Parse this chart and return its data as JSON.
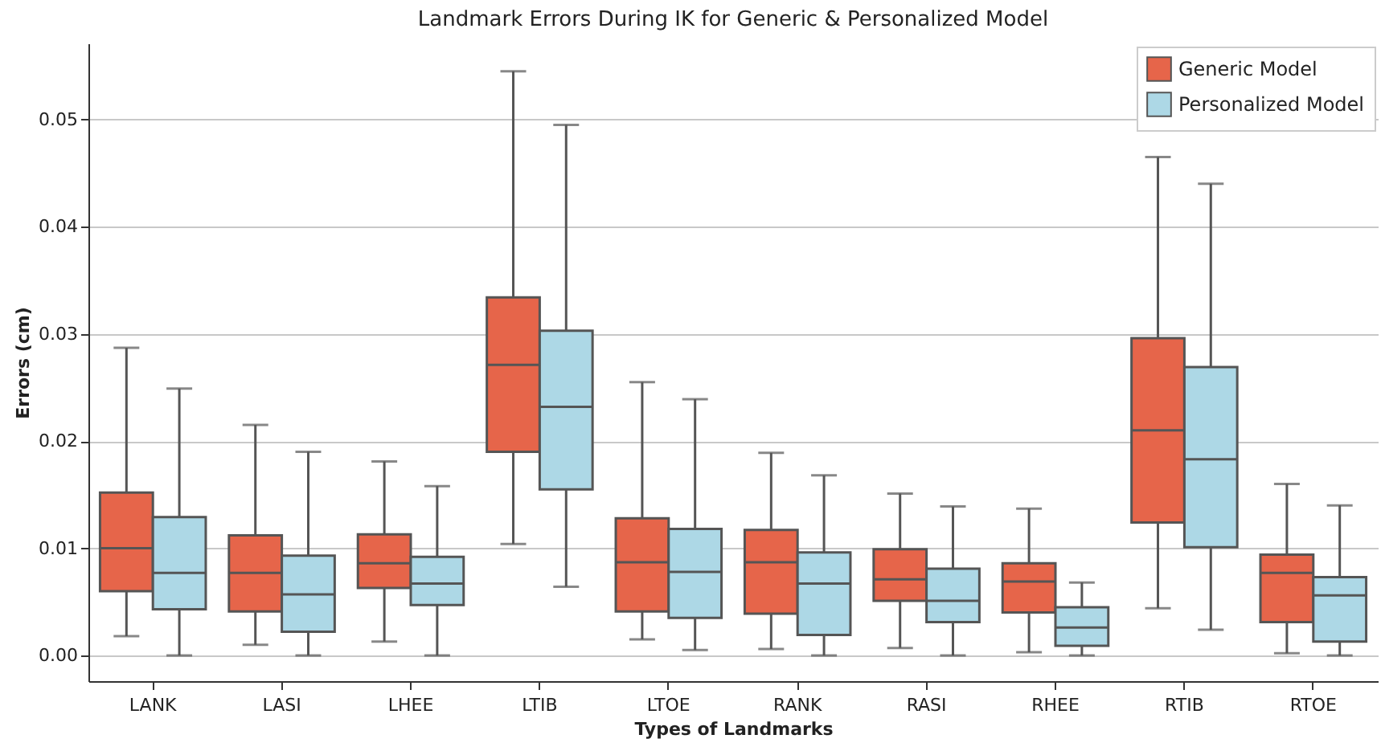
{
  "chart_data": {
    "type": "box",
    "title": "Landmark Errors During IK for Generic & Personalized Model",
    "xlabel": "Types of Landmarks",
    "ylabel": "Errors (cm)",
    "categories": [
      "LANK",
      "LASI",
      "LHEE",
      "LTIB",
      "LTOE",
      "RANK",
      "RASI",
      "RHEE",
      "RTIB",
      "RTOE"
    ],
    "ylim": [
      -0.0024,
      0.0571
    ],
    "yticks": [
      {
        "value": 0,
        "label": "0.00"
      },
      {
        "value": 0.01,
        "label": "0.01"
      },
      {
        "value": 0.02,
        "label": "0.02"
      },
      {
        "value": 0.03,
        "label": "0.03"
      },
      {
        "value": 0.04,
        "label": "0.04"
      },
      {
        "value": 0.05,
        "label": "0.05"
      }
    ],
    "grid": "y",
    "legend": "top right",
    "series": [
      {
        "name": "Generic Model",
        "color": "#e6654a",
        "boxes": [
          {
            "low": 0.0018,
            "q1": 0.006,
            "median": 0.01,
            "q3": 0.0152,
            "high": 0.0287
          },
          {
            "low": 0.001,
            "q1": 0.0041,
            "median": 0.0077,
            "q3": 0.0112,
            "high": 0.0215
          },
          {
            "low": 0.0013,
            "q1": 0.0063,
            "median": 0.0086,
            "q3": 0.0113,
            "high": 0.0181
          },
          {
            "low": 0.0104,
            "q1": 0.019,
            "median": 0.0271,
            "q3": 0.0334,
            "high": 0.0545
          },
          {
            "low": 0.0015,
            "q1": 0.0041,
            "median": 0.0087,
            "q3": 0.0128,
            "high": 0.0255
          },
          {
            "low": 0.0006,
            "q1": 0.0039,
            "median": 0.0087,
            "q3": 0.0117,
            "high": 0.0189
          },
          {
            "low": 0.0007,
            "q1": 0.0051,
            "median": 0.0071,
            "q3": 0.0099,
            "high": 0.0151
          },
          {
            "low": 0.0003,
            "q1": 0.004,
            "median": 0.0069,
            "q3": 0.0086,
            "high": 0.0137
          },
          {
            "low": 0.0044,
            "q1": 0.0124,
            "median": 0.021,
            "q3": 0.0296,
            "high": 0.0465
          },
          {
            "low": 0.0002,
            "q1": 0.0031,
            "median": 0.0077,
            "q3": 0.0094,
            "high": 0.016
          }
        ]
      },
      {
        "name": "Personalized Model",
        "color": "#add8e6",
        "boxes": [
          {
            "low": 0,
            "q1": 0.0043,
            "median": 0.0077,
            "q3": 0.0129,
            "high": 0.0249
          },
          {
            "low": 0,
            "q1": 0.0022,
            "median": 0.0057,
            "q3": 0.0093,
            "high": 0.019
          },
          {
            "low": 0,
            "q1": 0.0047,
            "median": 0.0067,
            "q3": 0.0092,
            "high": 0.0158
          },
          {
            "low": 0.0064,
            "q1": 0.0155,
            "median": 0.0232,
            "q3": 0.0303,
            "high": 0.0495
          },
          {
            "low": 0.0005,
            "q1": 0.0035,
            "median": 0.0078,
            "q3": 0.0118,
            "high": 0.0239
          },
          {
            "low": 0,
            "q1": 0.0019,
            "median": 0.0067,
            "q3": 0.0096,
            "high": 0.0168
          },
          {
            "low": 0,
            "q1": 0.0031,
            "median": 0.0051,
            "q3": 0.0081,
            "high": 0.0139
          },
          {
            "low": 0,
            "q1": 0.0009,
            "median": 0.0026,
            "q3": 0.0045,
            "high": 0.0068
          },
          {
            "low": 0.0024,
            "q1": 0.0101,
            "median": 0.0183,
            "q3": 0.0269,
            "high": 0.044
          },
          {
            "low": 0,
            "q1": 0.0013,
            "median": 0.0056,
            "q3": 0.0073,
            "high": 0.014
          }
        ]
      }
    ]
  }
}
